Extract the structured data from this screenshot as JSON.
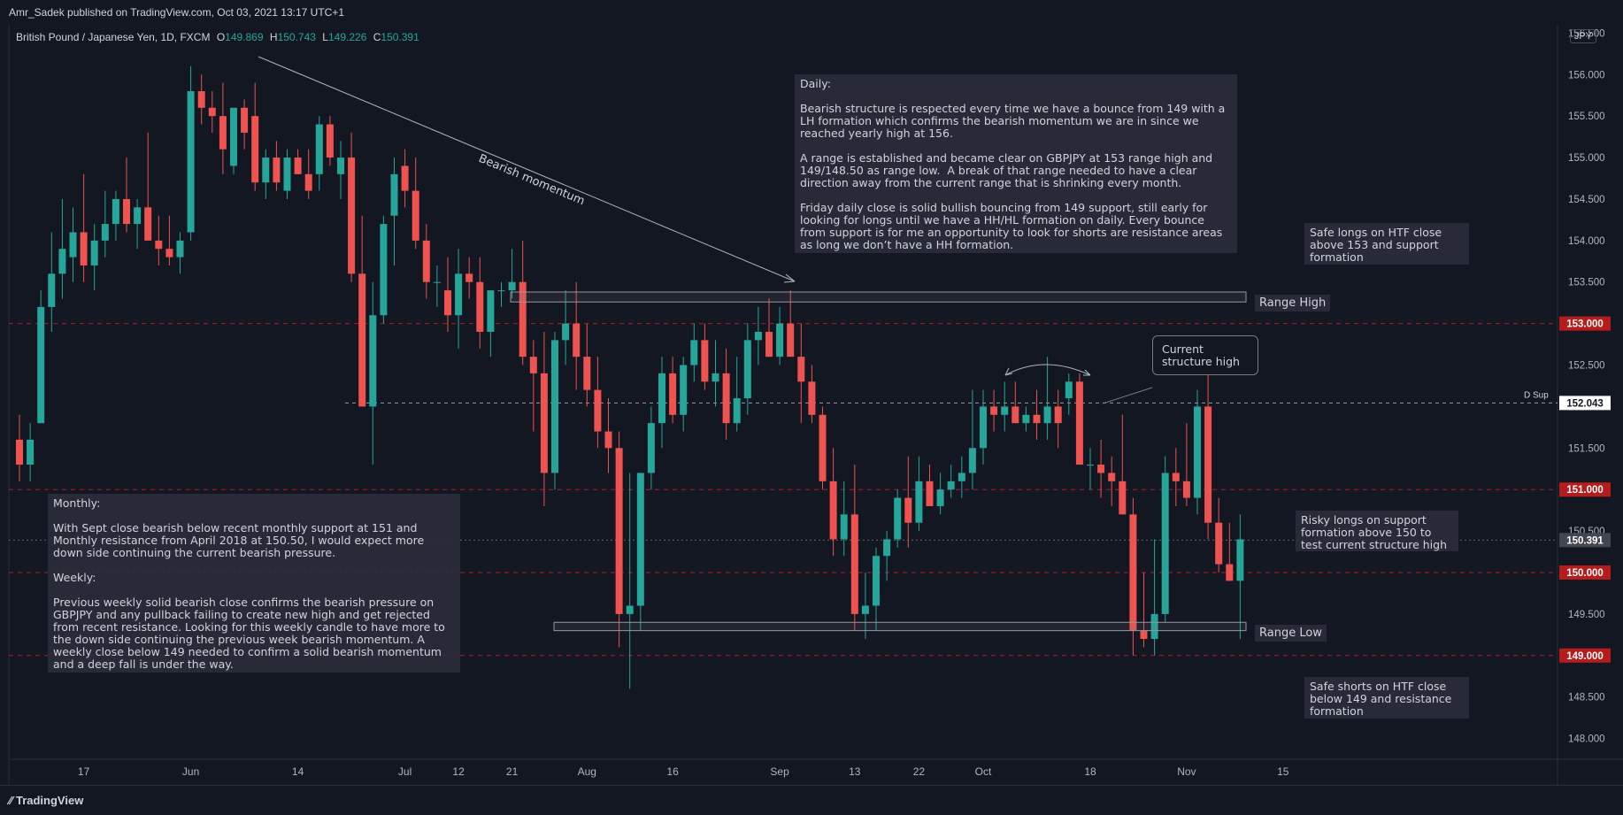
{
  "header": {
    "published": "Amr_Sadek published on TradingView.com, Oct 03, 2021 13:17 UTC+1"
  },
  "legend": {
    "symbol": "British Pound / Japanese Yen, 1D, FXCM",
    "o_label": "O",
    "o": "149.869",
    "h_label": "H",
    "h": "150.743",
    "l_label": "L",
    "l": "149.226",
    "c_label": "C",
    "c": "150.391"
  },
  "currency_badge": "JPY",
  "footer": {
    "brand": "TradingView"
  },
  "colors": {
    "up": "#26a69a",
    "down": "#ef5350",
    "bg": "#131722",
    "grid": "#2a2e39",
    "level": "#b71c1c"
  },
  "notes": {
    "daily": "Daily:\n\nBearish structure is respected every time we have a bounce from 149 with a LH formation which confirms the bearish momentum we are in since we reached yearly high at 156.\n\nA range is established and became clear on GBPJPY at 153 range high and 149/148.50 as range low.  A break of that range needed to have a clear direction away from the current range that is shrinking every month.\n\nFriday daily close is solid bullish bouncing from 149 support, still early for looking for longs until we have a HH/HL formation on daily. Every bounce from support is for me an opportunity to look for shorts are resistance areas as long we don’t have a HH formation.",
    "monthly": "Monthly:\n\nWith Sept close bearish below recent monthly support at 151 and Monthly resistance from April 2018 at 150.50, I would expect more down side continuing the current bearish pressure.\n\nWeekly:\n\nPrevious weekly solid bearish close confirms the bearish pressure on GBPJPY and any pullback failing to create new high and get rejected from recent resistance. Looking for this weekly candle to have more to the down side continuing the previous week bearish momentum. A weekly close below 149 needed to confirm a solid bearish momentum and a deep fall is under the way.",
    "safe_longs": "Safe longs on HTF close above 153 and support formation",
    "risky_longs": "Risky longs on support formation above 150 to test current structure high",
    "safe_shorts": "Safe shorts on HTF close below 149 and resistance formation",
    "range_high": "Range High",
    "range_low": "Range Low",
    "current_high": "Current structure high",
    "bearish_momentum": "Bearish momentum",
    "d_sup": "D Sup"
  },
  "chart_data": {
    "type": "candlestick",
    "ylim": [
      147.75,
      156.6
    ],
    "y_ticks": [
      148.0,
      148.5,
      149.0,
      149.5,
      150.0,
      150.5,
      151.0,
      151.5,
      152.0,
      152.5,
      153.0,
      153.5,
      154.0,
      154.5,
      155.0,
      155.5,
      156.0,
      156.5
    ],
    "y_tick_labels": [
      "148.000",
      "148.500",
      "149.000",
      "149.500",
      "150.000",
      "150.500",
      "151.000",
      "151.500",
      "152.000",
      "152.500",
      "153.000",
      "153.500",
      "154.000",
      "154.500",
      "155.000",
      "155.500",
      "156.000",
      "156.500"
    ],
    "x_tick_labels": [
      {
        "bar": 6,
        "label": "17"
      },
      {
        "bar": 16,
        "label": "Jun"
      },
      {
        "bar": 26,
        "label": "14"
      },
      {
        "bar": 36,
        "label": "Jul"
      },
      {
        "bar": 41,
        "label": "12"
      },
      {
        "bar": 46,
        "label": "21"
      },
      {
        "bar": 53,
        "label": "Aug"
      },
      {
        "bar": 61,
        "label": "16"
      },
      {
        "bar": 71,
        "label": "Sep"
      },
      {
        "bar": 78,
        "label": "13"
      },
      {
        "bar": 84,
        "label": "22"
      },
      {
        "bar": 90,
        "label": "Oct"
      },
      {
        "bar": 100,
        "label": "18"
      },
      {
        "bar": 109,
        "label": "Nov"
      },
      {
        "bar": 118,
        "label": "15"
      }
    ],
    "price_tags": [
      {
        "value": 153.0,
        "label": "153.000",
        "style": "red"
      },
      {
        "value": 152.043,
        "label": "152.043",
        "style": "white"
      },
      {
        "value": 151.0,
        "label": "151.000",
        "style": "red"
      },
      {
        "value": 150.391,
        "label": "150.391",
        "style": "gray"
      },
      {
        "value": 150.0,
        "label": "150.000",
        "style": "red"
      },
      {
        "value": 149.0,
        "label": "149.000",
        "style": "red"
      }
    ],
    "levels": [
      153.0,
      151.0,
      150.0,
      149.0
    ],
    "dashed_white_level": 152.043,
    "current_price_level": 150.391,
    "range_high": [
      153.26,
      153.38
    ],
    "range_low": [
      149.3,
      149.4
    ],
    "candles": [
      [
        151.6,
        151.9,
        151.1,
        151.3
      ],
      [
        151.3,
        151.8,
        151.1,
        151.6
      ],
      [
        151.8,
        153.4,
        151.8,
        153.2
      ],
      [
        153.2,
        154.1,
        152.9,
        153.6
      ],
      [
        153.6,
        154.5,
        153.3,
        153.9
      ],
      [
        153.8,
        154.4,
        153.5,
        154.1
      ],
      [
        154.1,
        154.8,
        153.5,
        153.7
      ],
      [
        153.7,
        154.2,
        153.4,
        154.0
      ],
      [
        154.0,
        154.6,
        153.8,
        154.2
      ],
      [
        154.2,
        154.6,
        154.0,
        154.5
      ],
      [
        154.5,
        155.0,
        154.1,
        154.2
      ],
      [
        154.2,
        154.5,
        153.9,
        154.4
      ],
      [
        154.4,
        155.3,
        154.0,
        154.0
      ],
      [
        154.0,
        154.3,
        153.7,
        153.9
      ],
      [
        153.9,
        154.3,
        153.7,
        153.8
      ],
      [
        153.8,
        154.1,
        153.6,
        154.0
      ],
      [
        154.1,
        156.1,
        154.0,
        155.8
      ],
      [
        155.8,
        156.0,
        155.4,
        155.6
      ],
      [
        155.6,
        155.8,
        155.3,
        155.5
      ],
      [
        155.5,
        155.9,
        154.8,
        155.1
      ],
      [
        154.9,
        155.6,
        154.8,
        155.6
      ],
      [
        155.6,
        155.7,
        155.1,
        155.3
      ],
      [
        155.5,
        155.9,
        154.6,
        154.7
      ],
      [
        154.7,
        155.1,
        154.5,
        155.0
      ],
      [
        155.0,
        155.2,
        154.6,
        154.7
      ],
      [
        154.6,
        155.1,
        154.5,
        155.0
      ],
      [
        155.0,
        155.1,
        154.8,
        154.8
      ],
      [
        154.8,
        155.1,
        154.5,
        154.6
      ],
      [
        154.8,
        155.5,
        154.6,
        155.4
      ],
      [
        155.4,
        155.5,
        154.9,
        155.0
      ],
      [
        154.8,
        155.2,
        154.5,
        155.0
      ],
      [
        155.0,
        155.3,
        153.5,
        153.6
      ],
      [
        153.6,
        154.3,
        152.0,
        152.0
      ],
      [
        152.0,
        153.5,
        151.3,
        153.1
      ],
      [
        153.1,
        154.3,
        153.0,
        154.2
      ],
      [
        154.3,
        155.0,
        153.7,
        154.8
      ],
      [
        154.9,
        155.1,
        154.4,
        154.6
      ],
      [
        154.6,
        155.0,
        153.9,
        154.0
      ],
      [
        154.0,
        154.2,
        153.3,
        153.5
      ],
      [
        153.5,
        153.7,
        153.2,
        153.5
      ],
      [
        153.4,
        153.8,
        152.9,
        153.1
      ],
      [
        153.1,
        153.9,
        152.7,
        153.6
      ],
      [
        153.6,
        153.8,
        153.3,
        153.5
      ],
      [
        153.5,
        153.8,
        152.7,
        152.9
      ],
      [
        152.9,
        153.4,
        152.6,
        153.4
      ],
      [
        153.4,
        153.5,
        153.2,
        153.4
      ],
      [
        153.4,
        153.9,
        153.3,
        153.5
      ],
      [
        153.5,
        154.0,
        152.5,
        152.6
      ],
      [
        152.6,
        152.8,
        151.7,
        152.4
      ],
      [
        152.4,
        152.9,
        150.8,
        151.2
      ],
      [
        151.2,
        152.9,
        151.0,
        152.8
      ],
      [
        152.8,
        153.4,
        152.5,
        153.0
      ],
      [
        153.0,
        153.5,
        152.2,
        152.6
      ],
      [
        152.6,
        153.0,
        152.0,
        152.2
      ],
      [
        152.2,
        152.6,
        151.5,
        151.7
      ],
      [
        151.7,
        152.1,
        151.2,
        151.5
      ],
      [
        151.5,
        151.7,
        149.1,
        149.5
      ],
      [
        149.5,
        151.2,
        148.6,
        149.6
      ],
      [
        149.6,
        151.2,
        149.3,
        151.2
      ],
      [
        151.2,
        152.0,
        151.0,
        151.8
      ],
      [
        151.8,
        152.6,
        151.5,
        152.4
      ],
      [
        152.4,
        152.6,
        151.8,
        151.9
      ],
      [
        151.9,
        152.6,
        151.7,
        152.5
      ],
      [
        152.5,
        153.0,
        152.3,
        152.8
      ],
      [
        152.8,
        153.0,
        152.2,
        152.3
      ],
      [
        152.3,
        152.8,
        152.0,
        152.4
      ],
      [
        152.4,
        152.7,
        151.6,
        151.8
      ],
      [
        151.8,
        152.6,
        151.7,
        152.1
      ],
      [
        152.1,
        153.0,
        151.9,
        152.8
      ],
      [
        152.8,
        153.2,
        152.5,
        152.9
      ],
      [
        152.9,
        153.3,
        152.6,
        152.6
      ],
      [
        152.6,
        153.2,
        152.5,
        153.0
      ],
      [
        153.0,
        153.4,
        152.6,
        152.6
      ],
      [
        152.6,
        153.0,
        151.8,
        152.3
      ],
      [
        152.3,
        152.5,
        151.8,
        151.9
      ],
      [
        151.9,
        152.0,
        151.0,
        151.1
      ],
      [
        151.1,
        151.5,
        150.2,
        150.4
      ],
      [
        150.4,
        151.1,
        150.2,
        150.7
      ],
      [
        150.7,
        151.3,
        149.3,
        149.5
      ],
      [
        149.5,
        150.0,
        149.2,
        149.6
      ],
      [
        149.6,
        150.3,
        149.3,
        150.2
      ],
      [
        150.2,
        150.5,
        149.9,
        150.4
      ],
      [
        150.4,
        151.0,
        150.3,
        150.9
      ],
      [
        150.9,
        151.4,
        150.3,
        150.6
      ],
      [
        150.6,
        151.4,
        150.5,
        151.1
      ],
      [
        151.1,
        151.3,
        150.8,
        150.8
      ],
      [
        150.8,
        151.2,
        150.7,
        151.0
      ],
      [
        151.0,
        151.3,
        150.9,
        151.1
      ],
      [
        151.1,
        151.4,
        150.9,
        151.2
      ],
      [
        151.2,
        152.2,
        151.0,
        151.5
      ],
      [
        151.5,
        152.2,
        151.3,
        152.0
      ],
      [
        152.0,
        152.2,
        151.7,
        151.9
      ],
      [
        151.9,
        152.3,
        151.7,
        152.0
      ],
      [
        152.0,
        152.3,
        151.8,
        151.8
      ],
      [
        151.8,
        152.0,
        151.7,
        151.9
      ],
      [
        151.9,
        152.2,
        151.6,
        151.8
      ],
      [
        151.8,
        152.6,
        151.6,
        152.0
      ],
      [
        152.0,
        152.2,
        151.5,
        151.8
      ],
      [
        152.1,
        152.4,
        151.9,
        152.3
      ],
      [
        152.3,
        152.4,
        151.3,
        151.3
      ],
      [
        151.3,
        151.5,
        151.0,
        151.3
      ],
      [
        151.3,
        151.6,
        150.9,
        151.2
      ],
      [
        151.2,
        151.4,
        150.8,
        151.1
      ],
      [
        151.1,
        151.9,
        150.7,
        150.7
      ],
      [
        150.7,
        150.9,
        149.0,
        149.3
      ],
      [
        149.3,
        150.0,
        149.1,
        149.2
      ],
      [
        149.2,
        150.4,
        149.0,
        149.5
      ],
      [
        149.5,
        151.4,
        149.4,
        151.2
      ],
      [
        151.2,
        151.5,
        150.8,
        151.1
      ],
      [
        151.1,
        151.8,
        150.8,
        150.9
      ],
      [
        150.9,
        152.2,
        150.7,
        152.0
      ],
      [
        152.0,
        152.4,
        150.4,
        150.6
      ],
      [
        150.6,
        150.9,
        150.0,
        150.1
      ],
      [
        150.1,
        150.6,
        149.9,
        149.9
      ],
      [
        149.9,
        150.7,
        149.2,
        150.4
      ]
    ]
  }
}
